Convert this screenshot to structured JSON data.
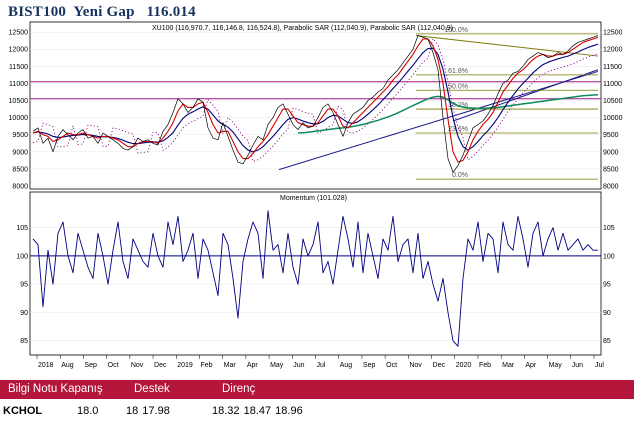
{
  "title": "BIST100  Yeni Gap   116.014",
  "colors": {
    "price": "#000000",
    "ma_fast": "#d60000",
    "ma_slow": "#00007a",
    "ma_long": "#0f8a5a",
    "sar": "#8b0a8b",
    "trend": "#1a1a8c",
    "fib": "#7a7a00",
    "hline": "#a0188c",
    "momentum": "#000080",
    "footer_bg": "#b3163a"
  },
  "chart_data": [
    {
      "type": "line",
      "legend": "XU100 (116,970.7, 116,146.8, 116,524.8), Parabolic SAR (112,040.9), Parabolic SAR (112,040.9)",
      "x_tick_labels": [
        "2018",
        "Aug",
        "Sep",
        "Oct",
        "Nov",
        "Dec",
        "2019",
        "Feb",
        "Mar",
        "Apr",
        "May",
        "Jun",
        "Jul",
        "Aug",
        "Sep",
        "Oct",
        "Nov",
        "Dec",
        "2020",
        "Feb",
        "Mar",
        "Apr",
        "May",
        "Jun",
        "Jul"
      ],
      "y_tick_labels": [
        "12500",
        "12000",
        "11500",
        "11000",
        "10500",
        "10000",
        "9500",
        "9000",
        "8500",
        "8000"
      ],
      "ylim": [
        8000,
        12650
      ],
      "x": [
        0,
        5,
        10,
        15,
        20,
        25,
        30,
        35,
        40,
        45,
        50,
        55,
        60,
        65,
        70,
        75,
        80,
        85,
        90,
        95,
        100,
        105,
        110,
        115,
        120,
        125,
        130,
        135,
        140,
        145,
        150,
        155,
        160,
        165,
        170,
        175,
        180,
        185,
        190,
        195,
        200,
        205,
        210,
        215,
        220,
        225,
        230,
        235,
        240,
        245,
        250,
        255,
        260,
        265,
        270,
        275,
        280,
        285,
        290,
        295,
        300,
        305,
        310,
        315,
        320,
        325,
        330,
        335,
        340,
        345,
        350,
        355,
        360,
        365,
        370,
        375,
        380,
        385,
        390,
        395,
        400,
        405,
        410,
        415,
        420,
        425,
        430,
        435,
        440,
        445,
        450,
        455,
        460,
        465,
        470,
        475,
        480,
        485,
        490,
        495,
        500,
        505,
        510,
        515,
        520,
        525,
        530,
        535,
        540,
        545,
        550,
        555,
        560,
        565
      ],
      "price": [
        9600,
        9700,
        9250,
        9400,
        9000,
        9450,
        9650,
        9500,
        9350,
        9550,
        9650,
        9400,
        9450,
        9250,
        9550,
        9450,
        9350,
        9250,
        9100,
        9050,
        9150,
        9400,
        9300,
        9350,
        9250,
        9200,
        9600,
        9800,
        10150,
        10550,
        10400,
        10150,
        10300,
        10550,
        10450,
        9700,
        9400,
        9350,
        9850,
        9450,
        9050,
        8700,
        8650,
        8900,
        9200,
        9450,
        9350,
        9800,
        10000,
        10300,
        10400,
        10100,
        9800,
        9650,
        9850,
        9700,
        9750,
        10000,
        10300,
        10400,
        10150,
        9800,
        9450,
        9850,
        10100,
        10200,
        10300,
        10500,
        10600,
        10750,
        10850,
        11100,
        11250,
        11400,
        11600,
        11800,
        12000,
        12400,
        12350,
        12300,
        11900,
        11400,
        10000,
        8800,
        8400,
        8600,
        8900,
        9300,
        9700,
        9800,
        9900,
        10100,
        10350,
        10700,
        11000,
        11100,
        11300,
        11350,
        11500,
        11700,
        11800,
        11900,
        11850,
        11750,
        11800,
        11900,
        11850,
        11950,
        12100,
        12200,
        12250,
        12300,
        12350,
        12400
      ],
      "ma_fast": [
        9550,
        9600,
        9500,
        9450,
        9300,
        9350,
        9450,
        9550,
        9500,
        9500,
        9550,
        9500,
        9450,
        9400,
        9450,
        9450,
        9400,
        9350,
        9250,
        9150,
        9150,
        9250,
        9300,
        9300,
        9300,
        9250,
        9400,
        9600,
        9850,
        10200,
        10400,
        10300,
        10300,
        10400,
        10450,
        10150,
        9800,
        9550,
        9600,
        9600,
        9300,
        9000,
        8800,
        8800,
        8950,
        9150,
        9300,
        9500,
        9750,
        10000,
        10250,
        10250,
        10050,
        9850,
        9800,
        9750,
        9750,
        9850,
        10050,
        10250,
        10250,
        10050,
        9750,
        9700,
        9850,
        10000,
        10150,
        10300,
        10450,
        10600,
        10750,
        10900,
        11100,
        11250,
        11450,
        11650,
        11850,
        12100,
        12300,
        12300,
        12100,
        11700,
        11000,
        9950,
        9000,
        8700,
        8750,
        9000,
        9350,
        9600,
        9800,
        9950,
        10150,
        10450,
        10750,
        10950,
        11150,
        11300,
        11400,
        11550,
        11700,
        11800,
        11850,
        11800,
        11800,
        11850,
        11850,
        11900,
        12000,
        12100,
        12200,
        12250,
        12300,
        12350
      ],
      "ma_slow": [
        9550,
        9580,
        9560,
        9520,
        9450,
        9420,
        9430,
        9460,
        9480,
        9490,
        9510,
        9500,
        9480,
        9450,
        9440,
        9440,
        9420,
        9390,
        9340,
        9280,
        9240,
        9240,
        9260,
        9280,
        9290,
        9280,
        9320,
        9420,
        9560,
        9780,
        9980,
        10100,
        10170,
        10250,
        10320,
        10250,
        10080,
        9900,
        9800,
        9720,
        9580,
        9380,
        9180,
        9050,
        9000,
        9050,
        9150,
        9300,
        9450,
        9620,
        9800,
        9950,
        10000,
        9960,
        9900,
        9850,
        9820,
        9820,
        9890,
        10000,
        10070,
        10050,
        9950,
        9850,
        9830,
        9880,
        9980,
        10100,
        10230,
        10370,
        10520,
        10680,
        10850,
        11010,
        11180,
        11360,
        11530,
        11720,
        11900,
        12020,
        12030,
        11850,
        11420,
        10750,
        10000,
        9450,
        9150,
        9050,
        9150,
        9300,
        9470,
        9620,
        9800,
        10000,
        10230,
        10450,
        10650,
        10840,
        11000,
        11150,
        11310,
        11440,
        11550,
        11620,
        11670,
        11720,
        11760,
        11800,
        11860,
        11920,
        11990,
        12050,
        12100,
        12150
      ],
      "ma_long": [
        null,
        null,
        null,
        null,
        null,
        null,
        null,
        null,
        null,
        null,
        null,
        null,
        null,
        null,
        null,
        null,
        null,
        null,
        null,
        null,
        null,
        null,
        null,
        null,
        null,
        null,
        null,
        null,
        null,
        null,
        null,
        null,
        null,
        null,
        null,
        null,
        null,
        null,
        null,
        null,
        null,
        null,
        null,
        null,
        null,
        null,
        null,
        null,
        null,
        null,
        null,
        null,
        null,
        9550,
        9560,
        9570,
        9590,
        9610,
        9630,
        9650,
        9670,
        9690,
        9700,
        9720,
        9740,
        9770,
        9800,
        9840,
        9880,
        9920,
        9970,
        10020,
        10080,
        10140,
        10210,
        10280,
        10350,
        10420,
        10490,
        10550,
        10600,
        10620,
        10600,
        10520,
        10420,
        10350,
        10310,
        10290,
        10280,
        10270,
        10270,
        10280,
        10290,
        10300,
        10320,
        10340,
        10360,
        10380,
        10400,
        10420,
        10440,
        10460,
        10480,
        10500,
        10520,
        10540,
        10560,
        10580,
        10600,
        10620,
        10640,
        10650,
        10660,
        10670
      ]
    },
    {
      "type": "line",
      "legend": "Momentum (101.028)",
      "y_tick_labels": [
        "105",
        "100",
        "95",
        "90",
        "85"
      ],
      "ylim": [
        83,
        109
      ],
      "reference_line": 100,
      "x": [
        0,
        5,
        10,
        15,
        20,
        25,
        30,
        35,
        40,
        45,
        50,
        55,
        60,
        65,
        70,
        75,
        80,
        85,
        90,
        95,
        100,
        105,
        110,
        115,
        120,
        125,
        130,
        135,
        140,
        145,
        150,
        155,
        160,
        165,
        170,
        175,
        180,
        185,
        190,
        195,
        200,
        205,
        210,
        215,
        220,
        225,
        230,
        235,
        240,
        245,
        250,
        255,
        260,
        265,
        270,
        275,
        280,
        285,
        290,
        295,
        300,
        305,
        310,
        315,
        320,
        325,
        330,
        335,
        340,
        345,
        350,
        355,
        360,
        365,
        370,
        375,
        380,
        385,
        390,
        395,
        400,
        405,
        410,
        415,
        420,
        425,
        430,
        435,
        440,
        445,
        450,
        455,
        460,
        465,
        470,
        475,
        480,
        485,
        490,
        495,
        500,
        505,
        510,
        515,
        520,
        525,
        530,
        535,
        540,
        545,
        550,
        555,
        560,
        565
      ],
      "values": [
        103,
        102,
        91,
        101,
        95,
        104,
        106,
        100,
        97,
        104,
        101,
        98,
        96,
        104,
        100,
        95,
        101,
        106,
        99,
        96,
        103,
        101,
        99,
        98,
        104,
        100,
        98,
        106,
        102,
        107,
        99,
        101,
        104,
        96,
        103,
        101,
        97,
        93,
        104,
        102,
        96,
        89,
        99,
        103,
        106,
        104,
        96,
        108,
        101,
        102,
        97,
        104,
        98,
        95,
        103,
        100,
        102,
        106,
        97,
        99,
        95,
        101,
        107,
        103,
        98,
        106,
        97,
        104,
        100,
        96,
        103,
        101,
        107,
        99,
        102,
        103,
        97,
        104,
        96,
        99,
        95,
        92,
        96,
        90,
        85,
        84,
        96,
        103,
        101,
        106,
        99,
        104,
        103,
        97,
        106,
        102,
        101,
        107,
        103,
        98,
        104,
        106,
        100,
        103,
        105,
        101,
        104,
        101,
        102,
        103,
        101,
        102,
        101,
        101
      ]
    }
  ],
  "fib_labels": [
    "100.0%",
    "61.8%",
    "50.0%",
    "38.2%",
    "23.6%",
    "0.0%"
  ],
  "footer": {
    "headers": {
      "col1": "Bilgi Notu Kapanış",
      "col2": "Destek",
      "col3": "Direnç"
    },
    "row": {
      "ticker": "KCHOL",
      "close": "18.0",
      "support": "18  17.98",
      "resistance": "18.32  18.47  18.96"
    }
  }
}
